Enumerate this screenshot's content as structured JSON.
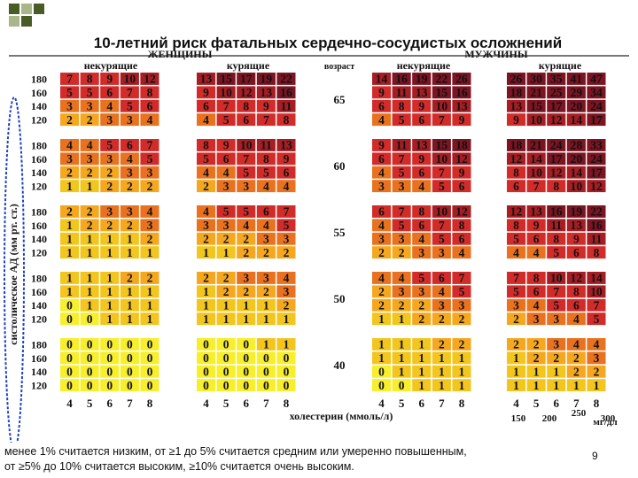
{
  "slide": {
    "title": "10-летний риск фатальных сердечно-сосудистых осложнений",
    "footer_line1": "менее  1%  считается низким, от  ≥1  до  5% считается средним или умеренно повышенным,",
    "footer_line2": "от ≥5% до 10% считается высоким, ≥10%  считается  очень высоким.",
    "page_number": "9"
  },
  "colors": {
    "deco_dark": "#4a5c26",
    "deco_light": "#a8b689",
    "rule": "#777777",
    "oval": "#2040c0"
  },
  "chart_data": {
    "type": "heatmap",
    "title": "10-летний риск фатальных сердечно-сосудистых осложнений",
    "labels": {
      "women": "ЖЕНЩИНЫ",
      "men": "МУЖЧИНЫ",
      "nonsmokers": "некурящие",
      "smokers": "курящие",
      "age": "возраст",
      "ylabel": "систолическое АД (мм рт. ст.)",
      "xlabel": "холестерин (ммоль/л)",
      "mgdl": "мг/дл"
    },
    "cholesterol_mmol": [
      "4",
      "5",
      "6",
      "7",
      "8"
    ],
    "cholesterol_mgdl": [
      "150",
      "200",
      "250",
      "300"
    ],
    "sbp": [
      "180",
      "160",
      "140",
      "120"
    ],
    "ages": [
      "65",
      "60",
      "55",
      "50",
      "40"
    ],
    "color_scale": [
      {
        "max": 0,
        "color": "#f7ee2c"
      },
      {
        "max": 1,
        "color": "#f2c61f"
      },
      {
        "max": 2,
        "color": "#f5a81f"
      },
      {
        "max": 4,
        "color": "#e8721f"
      },
      {
        "max": 9,
        "color": "#d12c2a"
      },
      {
        "max": 14,
        "color": "#a61e24"
      },
      {
        "max": 99,
        "color": "#7c1422"
      }
    ],
    "panels": {
      "women_nonsmokers": [
        [
          [
            "7",
            "8",
            "9",
            "10",
            "12"
          ],
          [
            "5",
            "5",
            "6",
            "7",
            "8"
          ],
          [
            "3",
            "3",
            "4",
            "5",
            "6"
          ],
          [
            "2",
            "2",
            "3",
            "3",
            "4"
          ]
        ],
        [
          [
            "4",
            "4",
            "5",
            "6",
            "7"
          ],
          [
            "3",
            "3",
            "3",
            "4",
            "5"
          ],
          [
            "2",
            "2",
            "2",
            "3",
            "3"
          ],
          [
            "1",
            "1",
            "2",
            "2",
            "2"
          ]
        ],
        [
          [
            "2",
            "2",
            "3",
            "3",
            "4"
          ],
          [
            "1",
            "2",
            "2",
            "2",
            "3"
          ],
          [
            "1",
            "1",
            "1",
            "1",
            "2"
          ],
          [
            "1",
            "1",
            "1",
            "1",
            "1"
          ]
        ],
        [
          [
            "1",
            "1",
            "1",
            "2",
            "2"
          ],
          [
            "1",
            "1",
            "1",
            "1",
            "1"
          ],
          [
            "0",
            "1",
            "1",
            "1",
            "1"
          ],
          [
            "0",
            "0",
            "1",
            "1",
            "1"
          ]
        ],
        [
          [
            "0",
            "0",
            "0",
            "0",
            "0"
          ],
          [
            "0",
            "0",
            "0",
            "0",
            "0"
          ],
          [
            "0",
            "0",
            "0",
            "0",
            "0"
          ],
          [
            "0",
            "0",
            "0",
            "0",
            "0"
          ]
        ]
      ],
      "women_smokers": [
        [
          [
            "13",
            "15",
            "17",
            "19",
            "22"
          ],
          [
            "9",
            "10",
            "12",
            "13",
            "16"
          ],
          [
            "6",
            "7",
            "8",
            "9",
            "11"
          ],
          [
            "4",
            "5",
            "6",
            "7",
            "8"
          ]
        ],
        [
          [
            "8",
            "9",
            "10",
            "11",
            "13"
          ],
          [
            "5",
            "6",
            "7",
            "8",
            "9"
          ],
          [
            "4",
            "4",
            "5",
            "5",
            "6"
          ],
          [
            "2",
            "3",
            "3",
            "4",
            "4"
          ]
        ],
        [
          [
            "4",
            "5",
            "5",
            "6",
            "7"
          ],
          [
            "3",
            "3",
            "4",
            "4",
            "5"
          ],
          [
            "2",
            "2",
            "2",
            "3",
            "3"
          ],
          [
            "1",
            "1",
            "2",
            "2",
            "2"
          ]
        ],
        [
          [
            "2",
            "2",
            "3",
            "3",
            "4"
          ],
          [
            "1",
            "2",
            "2",
            "2",
            "3"
          ],
          [
            "1",
            "1",
            "1",
            "1",
            "2"
          ],
          [
            "1",
            "1",
            "1",
            "1",
            "1"
          ]
        ],
        [
          [
            "0",
            "0",
            "0",
            "1",
            "1"
          ],
          [
            "0",
            "0",
            "0",
            "0",
            "0"
          ],
          [
            "0",
            "0",
            "0",
            "0",
            "0"
          ],
          [
            "0",
            "0",
            "0",
            "0",
            "0"
          ]
        ]
      ],
      "men_nonsmokers": [
        [
          [
            "14",
            "16",
            "19",
            "22",
            "26"
          ],
          [
            "9",
            "11",
            "13",
            "15",
            "16"
          ],
          [
            "6",
            "8",
            "9",
            "10",
            "13"
          ],
          [
            "4",
            "5",
            "6",
            "7",
            "9"
          ]
        ],
        [
          [
            "9",
            "11",
            "13",
            "15",
            "18"
          ],
          [
            "6",
            "7",
            "9",
            "10",
            "12"
          ],
          [
            "4",
            "5",
            "6",
            "7",
            "9"
          ],
          [
            "3",
            "3",
            "4",
            "5",
            "6"
          ]
        ],
        [
          [
            "6",
            "7",
            "8",
            "10",
            "12"
          ],
          [
            "4",
            "5",
            "6",
            "7",
            "8"
          ],
          [
            "3",
            "3",
            "4",
            "5",
            "6"
          ],
          [
            "2",
            "2",
            "3",
            "3",
            "4"
          ]
        ],
        [
          [
            "4",
            "4",
            "5",
            "6",
            "7"
          ],
          [
            "2",
            "3",
            "3",
            "4",
            "5"
          ],
          [
            "2",
            "2",
            "2",
            "3",
            "3"
          ],
          [
            "1",
            "1",
            "2",
            "2",
            "2"
          ]
        ],
        [
          [
            "1",
            "1",
            "1",
            "2",
            "2"
          ],
          [
            "1",
            "1",
            "1",
            "1",
            "1"
          ],
          [
            "0",
            "1",
            "1",
            "1",
            "1"
          ],
          [
            "0",
            "0",
            "1",
            "1",
            "1"
          ]
        ]
      ],
      "men_smokers": [
        [
          [
            "26",
            "30",
            "35",
            "41",
            "47"
          ],
          [
            "18",
            "21",
            "25",
            "29",
            "34"
          ],
          [
            "13",
            "15",
            "17",
            "20",
            "24"
          ],
          [
            "9",
            "10",
            "12",
            "14",
            "17"
          ]
        ],
        [
          [
            "18",
            "21",
            "24",
            "28",
            "33"
          ],
          [
            "12",
            "14",
            "17",
            "20",
            "24"
          ],
          [
            "8",
            "10",
            "12",
            "14",
            "17"
          ],
          [
            "6",
            "7",
            "8",
            "10",
            "12"
          ]
        ],
        [
          [
            "12",
            "13",
            "16",
            "19",
            "22"
          ],
          [
            "8",
            "9",
            "11",
            "13",
            "16"
          ],
          [
            "5",
            "6",
            "8",
            "9",
            "11"
          ],
          [
            "4",
            "4",
            "5",
            "6",
            "8"
          ]
        ],
        [
          [
            "7",
            "8",
            "10",
            "12",
            "14"
          ],
          [
            "5",
            "6",
            "7",
            "8",
            "10"
          ],
          [
            "3",
            "4",
            "5",
            "6",
            "7"
          ],
          [
            "2",
            "3",
            "3",
            "4",
            "5"
          ]
        ],
        [
          [
            "2",
            "2",
            "3",
            "4",
            "4"
          ],
          [
            "1",
            "2",
            "2",
            "2",
            "3"
          ],
          [
            "1",
            "1",
            "1",
            "2",
            "2"
          ],
          [
            "1",
            "1",
            "1",
            "1",
            "1"
          ]
        ]
      ]
    }
  }
}
